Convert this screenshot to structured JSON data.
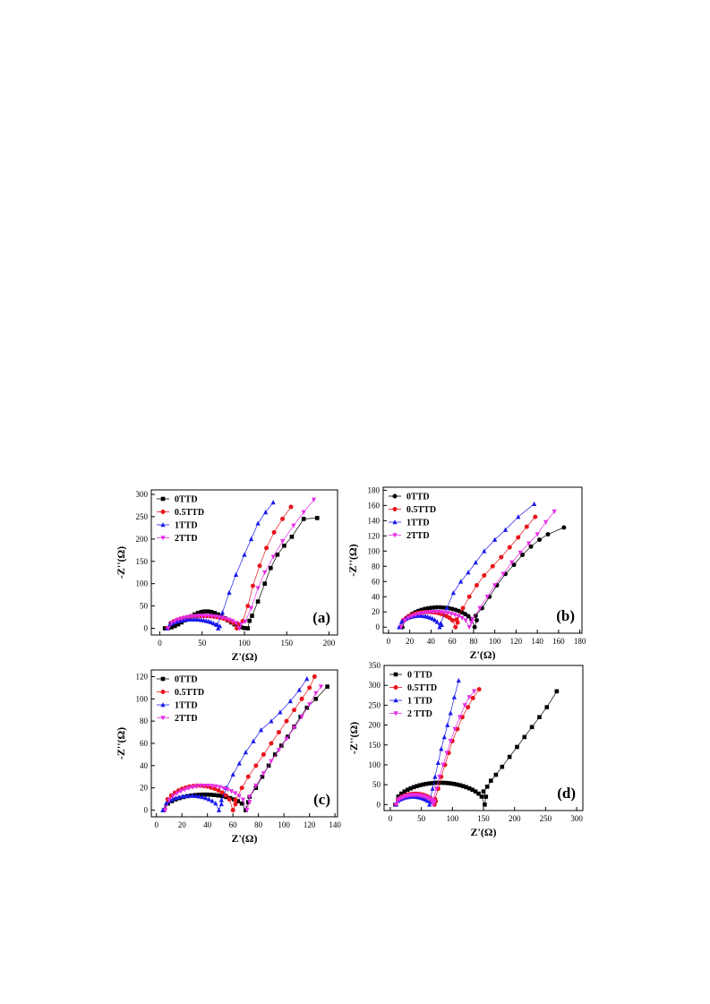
{
  "colors": {
    "0TTD": "#000000",
    "0.5TTD": "#e8141b",
    "1TTD": "#1a1aee",
    "2TTD": "#e62de6"
  },
  "chart_data": [
    {
      "type": "scatter",
      "panel_label": "(a)",
      "xlabel": "Z'(Ω)",
      "ylabel": "-Z''(Ω)",
      "xlim": [
        -10,
        210
      ],
      "ylim": [
        -15,
        310
      ],
      "xticks": [
        0,
        50,
        100,
        150,
        200
      ],
      "yticks": [
        0,
        50,
        100,
        150,
        200,
        250,
        300
      ],
      "legend_position": "top-left",
      "series": [
        {
          "name": "0TTD",
          "marker": "square",
          "arc": {
            "x0": 6,
            "R": 49,
            "h": 38,
            "pow": 2,
            "n": 26,
            "gap": 2,
            "cy": 28
          },
          "tail": [
            [
              109,
              28
            ],
            [
              116,
              60
            ],
            [
              124,
              100
            ],
            [
              131,
              135
            ],
            [
              139,
              165
            ],
            [
              147,
              185
            ],
            [
              156,
              205
            ],
            [
              170,
              245
            ],
            [
              186,
              247
            ]
          ]
        },
        {
          "name": "0.5TTD",
          "marker": "circle",
          "arc": {
            "x0": 9,
            "R": 41,
            "h": 28,
            "pow": 0.45,
            "n": 22,
            "gap": 2,
            "cy": 16
          },
          "tail": [
            [
              98,
              16
            ],
            [
              104,
              50
            ],
            [
              110,
              95
            ],
            [
              118,
              140
            ],
            [
              126,
              180
            ],
            [
              135,
              215
            ],
            [
              145,
              245
            ],
            [
              155,
              272
            ]
          ]
        },
        {
          "name": "1TTD",
          "marker": "triangle-up",
          "arc": {
            "x0": 9,
            "R": 30,
            "h": 20,
            "pow": 0.45,
            "n": 22,
            "gap": 2,
            "cy": 8
          },
          "tail": [
            [
              68,
              8
            ],
            [
              74,
              35
            ],
            [
              82,
              80
            ],
            [
              90,
              120
            ],
            [
              100,
              165
            ],
            [
              108,
              200
            ],
            [
              116,
              235
            ],
            [
              125,
              260
            ],
            [
              134,
              282
            ]
          ]
        },
        {
          "name": "2TTD",
          "marker": "triangle-down",
          "arc": {
            "x0": 10,
            "R": 42,
            "h": 28,
            "pow": 0.45,
            "n": 22,
            "gap": 2,
            "cy": 15
          },
          "tail": [
            [
              101,
              15
            ],
            [
              108,
              45
            ],
            [
              116,
              90
            ],
            [
              124,
              125
            ],
            [
              134,
              160
            ],
            [
              145,
              195
            ],
            [
              158,
              230
            ],
            [
              170,
              260
            ],
            [
              182,
              288
            ]
          ]
        }
      ]
    },
    {
      "type": "scatter",
      "panel_label": "(b)",
      "xlabel": "Z'(Ω)",
      "ylabel": "-Z''(Ω)",
      "xlim": [
        -5,
        182
      ],
      "ylim": [
        -8,
        184
      ],
      "xticks": [
        0,
        20,
        40,
        60,
        80,
        100,
        120,
        140,
        160,
        180
      ],
      "yticks": [
        0,
        20,
        40,
        60,
        80,
        100,
        120,
        140,
        160,
        180
      ],
      "legend_position": "top-left",
      "series": [
        {
          "name": "0TTD",
          "marker": "circle",
          "arc": {
            "x0": 13,
            "R": 34,
            "h": 26,
            "pow": 0.45,
            "n": 24,
            "gap": 2,
            "cy": 15
          },
          "tail": [
            [
              82,
              15
            ],
            [
              88,
              25
            ],
            [
              95,
              40
            ],
            [
              102,
              55
            ],
            [
              110,
              70
            ],
            [
              118,
              82
            ],
            [
              126,
              95
            ],
            [
              134,
              106
            ],
            [
              142,
              115
            ],
            [
              150,
              122
            ],
            [
              165,
              131
            ]
          ]
        },
        {
          "name": "0.5TTD",
          "marker": "circle",
          "arc": {
            "x0": 11,
            "R": 26,
            "h": 20,
            "pow": 0.45,
            "n": 20,
            "gap": 2,
            "cy": 10
          },
          "tail": [
            [
              64,
              10
            ],
            [
              70,
              25
            ],
            [
              76,
              40
            ],
            [
              83,
              55
            ],
            [
              90,
              68
            ],
            [
              98,
              80
            ],
            [
              106,
              92
            ],
            [
              114,
              105
            ],
            [
              122,
              118
            ],
            [
              130,
              132
            ],
            [
              138,
              145
            ]
          ]
        },
        {
          "name": "1TTD",
          "marker": "triangle-up",
          "arc": {
            "x0": 10,
            "R": 19,
            "h": 15,
            "pow": 0.45,
            "n": 18,
            "gap": 2,
            "cy": 5
          },
          "tail": [
            [
              49,
              5
            ],
            [
              55,
              25
            ],
            [
              61,
              45
            ],
            [
              68,
              60
            ],
            [
              75,
              72
            ],
            [
              82,
              85
            ],
            [
              90,
              100
            ],
            [
              100,
              115
            ],
            [
              110,
              128
            ],
            [
              122,
              145
            ],
            [
              137,
              162
            ]
          ]
        },
        {
          "name": "2TTD",
          "marker": "triangle-down",
          "arc": {
            "x0": 12,
            "R": 32,
            "h": 20,
            "pow": 0.45,
            "n": 20,
            "gap": 2,
            "cy": 10
          },
          "tail": [
            [
              79,
              10
            ],
            [
              86,
              25
            ],
            [
              93,
              40
            ],
            [
              100,
              55
            ],
            [
              108,
              70
            ],
            [
              116,
              85
            ],
            [
              124,
              98
            ],
            [
              132,
              110
            ],
            [
              140,
              122
            ],
            [
              148,
              138
            ],
            [
              156,
              152
            ]
          ]
        }
      ]
    },
    {
      "type": "scatter",
      "panel_label": "(c)",
      "xlabel": "Z'(Ω)",
      "ylabel": "-Z''(Ω)",
      "xlim": [
        -4,
        142
      ],
      "ylim": [
        -6,
        126
      ],
      "xticks": [
        0,
        20,
        40,
        60,
        80,
        100,
        120,
        140
      ],
      "yticks": [
        0,
        20,
        40,
        60,
        80,
        100,
        120
      ],
      "legend_position": "top-left",
      "series": [
        {
          "name": "0TTD",
          "marker": "square",
          "arc": {
            "x0": 6,
            "R": 32,
            "h": 14,
            "pow": 0.45,
            "n": 22,
            "gap": 2,
            "cy": 12
          },
          "tail": [
            [
              73,
              12
            ],
            [
              78,
              20
            ],
            [
              83,
              30
            ],
            [
              88,
              40
            ],
            [
              93,
              50
            ],
            [
              98,
              58
            ],
            [
              103,
              66
            ],
            [
              108,
              75
            ],
            [
              113,
              84
            ],
            [
              118,
              92
            ],
            [
              125,
              100
            ],
            [
              134,
              111
            ]
          ]
        },
        {
          "name": "0.5TTD",
          "marker": "circle",
          "arc": {
            "x0": 6,
            "R": 27,
            "h": 22,
            "pow": 0.45,
            "n": 20,
            "gap": 2,
            "cy": 9
          },
          "tail": [
            [
              62,
              9
            ],
            [
              67,
              20
            ],
            [
              72,
              30
            ],
            [
              78,
              40
            ],
            [
              84,
              50
            ],
            [
              90,
              60
            ],
            [
              96,
              70
            ],
            [
              102,
              80
            ],
            [
              108,
              90
            ],
            [
              114,
              100
            ],
            [
              120,
              110
            ],
            [
              124,
              120
            ]
          ]
        },
        {
          "name": "1TTD",
          "marker": "triangle-up",
          "arc": {
            "x0": 5,
            "R": 22,
            "h": 13,
            "pow": 0.45,
            "n": 18,
            "gap": 2,
            "cy": 9
          },
          "tail": [
            [
              51,
              9
            ],
            [
              55,
              20
            ],
            [
              60,
              32
            ],
            [
              65,
              42
            ],
            [
              70,
              52
            ],
            [
              76,
              62
            ],
            [
              82,
              72
            ],
            [
              90,
              80
            ],
            [
              97,
              88
            ],
            [
              105,
              98
            ],
            [
              112,
              108
            ],
            [
              118,
              118
            ]
          ]
        },
        {
          "name": "2TTD",
          "marker": "triangle-down",
          "arc": {
            "x0": 7,
            "R": 32,
            "h": 22,
            "pow": 0.45,
            "n": 22,
            "gap": 2,
            "cy": 12
          },
          "tail": [
            [
              73,
              12
            ],
            [
              78,
              22
            ],
            [
              84,
              33
            ],
            [
              90,
              44
            ],
            [
              96,
              54
            ],
            [
              102,
              64
            ],
            [
              108,
              74
            ],
            [
              114,
              84
            ],
            [
              120,
              95
            ],
            [
              125,
              105
            ],
            [
              129,
              111
            ]
          ]
        }
      ]
    },
    {
      "type": "scatter",
      "panel_label": "(d)",
      "xlabel": "Z'(Ω)",
      "ylabel": "-Z''(Ω)",
      "xlim": [
        -10,
        310
      ],
      "ylim": [
        -15,
        350
      ],
      "xticks": [
        0,
        50,
        100,
        150,
        200,
        250,
        300
      ],
      "yticks": [
        0,
        50,
        100,
        150,
        200,
        250,
        300,
        350
      ],
      "legend_position": "top-left",
      "series": [
        {
          "name": "0 TTD",
          "color_key": "0TTD",
          "marker": "square",
          "arc": {
            "x0": 8,
            "R": 72,
            "h": 55,
            "pow": 0.45,
            "n": 30,
            "gap": 2,
            "cy": 33
          },
          "tail": [
            [
              150,
              33
            ],
            [
              156,
              45
            ],
            [
              162,
              60
            ],
            [
              170,
              75
            ],
            [
              180,
              95
            ],
            [
              192,
              120
            ],
            [
              204,
              145
            ],
            [
              216,
              170
            ],
            [
              228,
              195
            ],
            [
              240,
              220
            ],
            [
              252,
              245
            ],
            [
              268,
              285
            ]
          ]
        },
        {
          "name": "0.5TTD",
          "color_key": "0.5TTD",
          "marker": "circle",
          "arc": {
            "x0": 9,
            "R": 31,
            "h": 27,
            "pow": 0.45,
            "n": 20,
            "gap": 2,
            "cy": 14
          },
          "tail": [
            [
              72,
              14
            ],
            [
              77,
              40
            ],
            [
              82,
              70
            ],
            [
              88,
              100
            ],
            [
              94,
              130
            ],
            [
              100,
              160
            ],
            [
              108,
              190
            ],
            [
              116,
              220
            ],
            [
              125,
              245
            ],
            [
              133,
              268
            ],
            [
              143,
              290
            ]
          ]
        },
        {
          "name": "1 TTD",
          "color_key": "1TTD",
          "marker": "triangle-up",
          "arc": {
            "x0": 9,
            "R": 27,
            "h": 20,
            "pow": 0.45,
            "n": 18,
            "gap": 2,
            "cy": 10
          },
          "tail": [
            [
              64,
              10
            ],
            [
              68,
              40
            ],
            [
              72,
              70
            ],
            [
              77,
              105
            ],
            [
              82,
              140
            ],
            [
              87,
              170
            ],
            [
              92,
              200
            ],
            [
              97,
              230
            ],
            [
              103,
              270
            ],
            [
              110,
              312
            ]
          ]
        },
        {
          "name": "2 TTD",
          "color_key": "2TTD",
          "marker": "triangle-down",
          "arc": {
            "x0": 9,
            "R": 30,
            "h": 24,
            "pow": 0.45,
            "n": 20,
            "gap": 2,
            "cy": 12
          },
          "tail": [
            [
              69,
              12
            ],
            [
              74,
              40
            ],
            [
              79,
              70
            ],
            [
              85,
              100
            ],
            [
              91,
              130
            ],
            [
              97,
              160
            ],
            [
              104,
              190
            ],
            [
              112,
              220
            ],
            [
              120,
              250
            ],
            [
              127,
              270
            ],
            [
              135,
              285
            ]
          ]
        }
      ]
    }
  ]
}
